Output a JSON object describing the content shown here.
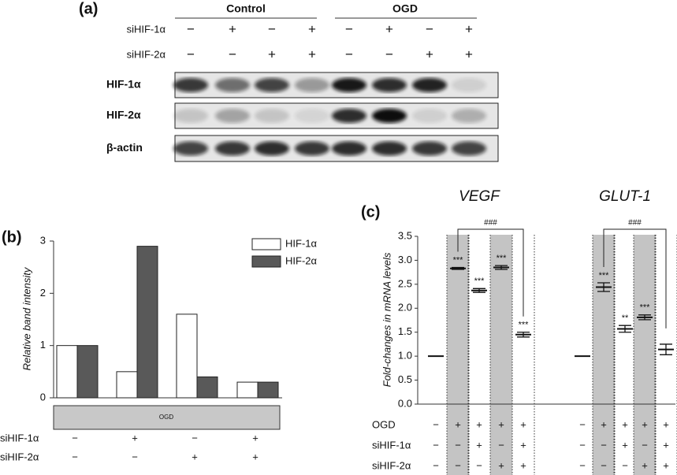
{
  "panel_a": {
    "label": "(a)",
    "groups": [
      "Control",
      "OGD"
    ],
    "treatment_rows": [
      {
        "label": "siHIF-1α",
        "signs": [
          "−",
          "+",
          "−",
          "+",
          "−",
          "+",
          "−",
          "+"
        ]
      },
      {
        "label": "siHIF-2α",
        "signs": [
          "−",
          "−",
          "+",
          "+",
          "−",
          "−",
          "+",
          "+"
        ]
      }
    ],
    "blot_rows": [
      "HIF-1α",
      "HIF-2α",
      "β-actin"
    ]
  },
  "chart_data": [
    {
      "type": "bar",
      "panel_label": "(b)",
      "y_label": "Relative band intensity",
      "categories": [
        null,
        null,
        null,
        null
      ],
      "series": [
        {
          "name": "HIF-1α",
          "color": "#ffffff",
          "values": [
            1.0,
            0.5,
            1.6,
            0.3
          ]
        },
        {
          "name": "HIF-2α",
          "color": "#595959",
          "values": [
            1.0,
            2.9,
            0.4,
            0.3
          ]
        }
      ],
      "ylim": [
        0,
        3
      ],
      "yticks": [
        0,
        1,
        2,
        3
      ],
      "legend": "upper right",
      "banner": "OGD",
      "condition_rows": [
        {
          "label": "siHIF-1α",
          "signs": [
            "−",
            "+",
            "−",
            "+"
          ]
        },
        {
          "label": "siHIF-2α",
          "signs": [
            "−",
            "−",
            "+",
            "+"
          ]
        }
      ]
    },
    {
      "type": "errorbar",
      "panel_label": "(c)",
      "y_label": "Fold-changes in mRNA levels",
      "groups": [
        "VEGF",
        "GLUT-1"
      ],
      "categories": [
        null,
        null,
        null,
        null,
        null,
        null,
        null,
        null,
        null,
        null
      ],
      "values": [
        1.0,
        2.83,
        2.37,
        2.85,
        1.45,
        1.0,
        2.44,
        1.57,
        1.81,
        1.14
      ],
      "errors": [
        0,
        0.02,
        0.04,
        0.04,
        0.05,
        0,
        0.09,
        0.07,
        0.05,
        0.11
      ],
      "significance": [
        null,
        "***",
        "***",
        "***",
        "***",
        null,
        "***",
        "**",
        "***",
        null
      ],
      "comparisons": [
        "###",
        "###"
      ],
      "ylim": [
        0,
        3.5
      ],
      "yticks": [
        {
          "value": 0,
          "label": "0.0"
        },
        {
          "value": 0.5,
          "label": "0.5"
        },
        {
          "value": 1,
          "label": "1.0"
        },
        {
          "value": 1.5,
          "label": "1.5"
        },
        {
          "value": 2,
          "label": "2.0"
        },
        {
          "value": 2.5,
          "label": "2.5"
        },
        {
          "value": 3,
          "label": "3.0"
        },
        {
          "value": 3.5,
          "label": "3.5"
        }
      ],
      "condition_rows": [
        {
          "label": "OGD",
          "signs": [
            "−",
            "+",
            "+",
            "+",
            "+",
            "−",
            "+",
            "+",
            "+",
            "+"
          ]
        },
        {
          "label": "siHIF-1α",
          "signs": [
            "−",
            "−",
            "+",
            "−",
            "+",
            "−",
            "−",
            "+",
            "−",
            "+"
          ]
        },
        {
          "label": "siHIF-2α",
          "signs": [
            "−",
            "−",
            "−",
            "+",
            "+",
            "−",
            "−",
            "−",
            "+",
            "+"
          ]
        }
      ]
    }
  ]
}
